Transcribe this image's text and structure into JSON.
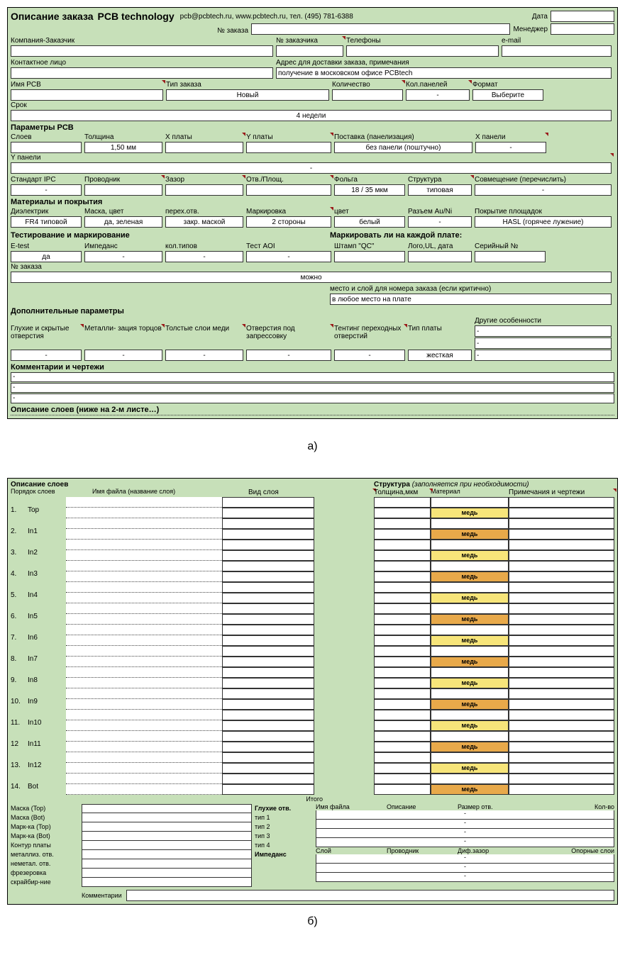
{
  "colors": {
    "panel_bg": "#c7e0b9",
    "input_bg": "#ffffff",
    "border": "#333333",
    "copper_y": "#f7e57a",
    "copper_o": "#e8a94a",
    "req_corner": "#9a1a1a"
  },
  "formA": {
    "title": "Описание заказа",
    "brand": "PCB technology",
    "contact": "pcb@pcbtech.ru, www.pcbtech.ru, тел. (495) 781-6388",
    "date_lbl": "Дата",
    "date": "",
    "orderno_lbl": "№ заказа",
    "orderno": "",
    "manager_lbl": "Менеджер",
    "manager": "",
    "company_lbl": "Компания-Заказчик",
    "company": "",
    "custno_lbl": "№ заказчика",
    "custno": "",
    "phones_lbl": "Телефоны",
    "phones": "",
    "email_lbl": "e-mail",
    "email": "",
    "contactperson_lbl": "Контактное лицо",
    "contactperson": "",
    "deliv_lbl": "Адрес для доставки заказа, примечания",
    "deliv": "получение в московском офисе PCBtech",
    "pcbname_lbl": "Имя PCB",
    "pcbname": "",
    "otype_lbl": "Тип заказа",
    "otype": "Новый",
    "qty_lbl": "Количество",
    "qty": "",
    "panels_lbl": "Кол.панелей",
    "panels": "-",
    "format_lbl": "Формат",
    "format": "Выберите",
    "term_lbl": "Срок",
    "term": "4 недели",
    "params_title": "Параметры PCB",
    "layers_lbl": "Слоев",
    "layers": "",
    "thick_lbl": "Толщина",
    "thick": "1,50 мм",
    "xb_lbl": "X платы",
    "xb": "",
    "yb_lbl": "Y платы",
    "yb": "",
    "supply_lbl": "Поставка (панелизация)",
    "supply": "без панели (поштучно)",
    "xp_lbl": "X панели",
    "xp": "-",
    "yp_lbl": "Y панели",
    "yp": "-",
    "ipc_lbl": "Стандарт IPC",
    "ipc": "-",
    "cond_lbl": "Проводник",
    "cond": "",
    "gap_lbl": "Зазор",
    "gap": "",
    "hole_lbl": "Отв./Площ.",
    "hole": "",
    "foil_lbl": "Фольга",
    "foil": "18 / 35 мкм",
    "struct_lbl": "Структура",
    "struct": "типовая",
    "align_lbl": "Совмещение (перечислить)",
    "align": "-",
    "mat_title": "Материалы и покрытия",
    "diel_lbl": "Диэлектрик",
    "diel": "FR4 типовой",
    "mask_lbl": "Маска, цвет",
    "mask": "да, зеленая",
    "via_lbl": "перех.отв.",
    "via": "закр. маской",
    "mark_lbl": "Маркировка",
    "mark": "2 стороны",
    "mcolor_lbl": "цвет",
    "mcolor": "белый",
    "auni_lbl": "Разъем Au/Ni",
    "auni": "-",
    "pad_lbl": "Покрытие площадок",
    "pad": "HASL (горячее лужение)",
    "test_title": "Тестирование и маркирование",
    "markeach_title": "Маркировать ли на каждой плате:",
    "etest_lbl": "E-test",
    "etest": "да",
    "imped_lbl": "Импеданс",
    "imped": "-",
    "ntypes_lbl": "кол.типов",
    "ntypes": "-",
    "aoi_lbl": "Тест AOI",
    "aoi": "-",
    "qc_lbl": "Штамп \"QC\"",
    "qc": "",
    "logo_lbl": "Лого,UL, дата",
    "logo": "",
    "serial_lbl": "Серийный №",
    "serial": "",
    "ono_lbl": "№ заказа",
    "ono": "можно",
    "olplace_lbl": "место и слой для номера заказа  (если критично)",
    "olplace": "в любое место на плате",
    "addl_title": "Дополнительные параметры",
    "blind_lbl": "Глухие и скрытые отверстия",
    "blind": "-",
    "edge_lbl": "Металли- зация торцов",
    "edge": "-",
    "thickcu_lbl": "Толстые слои меди",
    "thickcu": "-",
    "press_lbl": "Отверстия под запрессовку",
    "press": "-",
    "tent_lbl": "Тентинг переходных отверстий",
    "tent": "-",
    "btype_lbl": "Тип платы",
    "btype": "жесткая",
    "other_lbl": "Другие особенности",
    "other1": "-",
    "other2": "-",
    "other3": "-",
    "comments_title": "Комментарии и чертежи",
    "c1": "-",
    "c2": "-",
    "c3": "-",
    "layers_desc_title": "Описание слоев (ниже на 2-м листе…)"
  },
  "caption_a": "а)",
  "formB": {
    "title_l": "Описание слоев",
    "order_lbl": "Порядок слоев",
    "file_lbl": "Имя файла (название слоя)",
    "view_lbl": "Вид слоя",
    "title_r": "Структура",
    "title_r_sub": "(заполняется при необходимости)",
    "thick_lbl": "Толщина,мкм",
    "mat_lbl": "Материал",
    "note_lbl": "Примечания и чертежи",
    "copper": "медь",
    "layers": [
      {
        "n": "1.",
        "name": "Top"
      },
      {
        "n": "2.",
        "name": "In1"
      },
      {
        "n": "3.",
        "name": "In2"
      },
      {
        "n": "4.",
        "name": "In3"
      },
      {
        "n": "5.",
        "name": "In4"
      },
      {
        "n": "6.",
        "name": "In5"
      },
      {
        "n": "7.",
        "name": "In6"
      },
      {
        "n": "8.",
        "name": "In7"
      },
      {
        "n": "9.",
        "name": "In8"
      },
      {
        "n": "10.",
        "name": "In9"
      },
      {
        "n": "11.",
        "name": "In10"
      },
      {
        "n": "12",
        "name": "In11"
      },
      {
        "n": "13.",
        "name": "In12"
      },
      {
        "n": "14.",
        "name": "Bot"
      }
    ],
    "total": "Итого",
    "lbl_list": [
      "Маска (Top)",
      "Маска (Bot)",
      "Марк-ка (Top)",
      "Марк-ка (Bot)",
      "Контур платы",
      "металлиз. отв.",
      "неметал. отв.",
      "фрезеровка",
      "скрайбир-ние"
    ],
    "blind_title": "Глухие отв.",
    "blind_types": [
      "тип 1",
      "тип 2",
      "тип 3",
      "тип 4"
    ],
    "imp_title": "Импеданс",
    "r_hdr1": [
      "Имя файла",
      "Описание",
      "Размер отв.",
      "Кол-во"
    ],
    "r_hdr2": [
      "Слой",
      "Проводник",
      "Диф.зазор",
      "Опорные слои"
    ],
    "dash": "-",
    "comments_lbl": "Комментарии"
  },
  "caption_b": "б)"
}
